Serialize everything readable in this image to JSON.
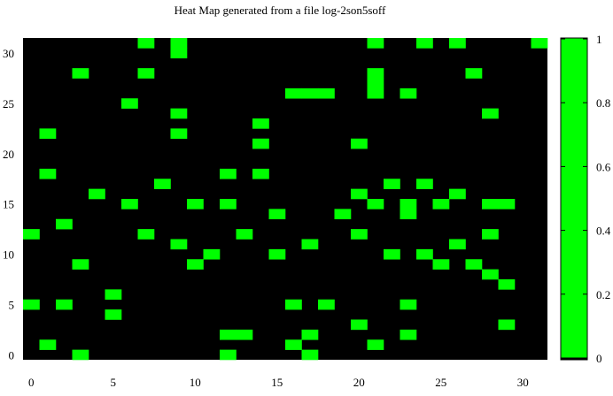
{
  "chart_data": {
    "type": "heatmap",
    "title": "Heat Map generated from a file log-2son5soff",
    "xlabel": "",
    "ylabel": "",
    "grid": false,
    "x_range": [
      0,
      31
    ],
    "y_range": [
      0,
      31
    ],
    "x_ticks": [
      "0",
      "5",
      "10",
      "15",
      "20",
      "25",
      "30"
    ],
    "y_ticks": [
      "0",
      "5",
      "10",
      "15",
      "20",
      "25",
      "30"
    ],
    "colorbar": {
      "range": [
        0,
        1
      ],
      "ticks": [
        "0",
        "0.2",
        "0.4",
        "0.6",
        "0.8",
        "1"
      ],
      "low_color": "#000000",
      "high_color": "#00ff00"
    },
    "background_value": 0,
    "cell_value": 1,
    "active_cells": [
      [
        7,
        31
      ],
      [
        9,
        31
      ],
      [
        21,
        31
      ],
      [
        24,
        31
      ],
      [
        26,
        31
      ],
      [
        31,
        31
      ],
      [
        9,
        30
      ],
      [
        3,
        28
      ],
      [
        7,
        28
      ],
      [
        21,
        28
      ],
      [
        27,
        28
      ],
      [
        21,
        27
      ],
      [
        16,
        26
      ],
      [
        17,
        26
      ],
      [
        18,
        26
      ],
      [
        21,
        26
      ],
      [
        23,
        26
      ],
      [
        6,
        25
      ],
      [
        9,
        24
      ],
      [
        28,
        24
      ],
      [
        14,
        23
      ],
      [
        1,
        22
      ],
      [
        9,
        22
      ],
      [
        14,
        21
      ],
      [
        20,
        21
      ],
      [
        1,
        18
      ],
      [
        12,
        18
      ],
      [
        14,
        18
      ],
      [
        8,
        17
      ],
      [
        22,
        17
      ],
      [
        24,
        17
      ],
      [
        4,
        16
      ],
      [
        20,
        16
      ],
      [
        26,
        16
      ],
      [
        6,
        15
      ],
      [
        10,
        15
      ],
      [
        12,
        15
      ],
      [
        21,
        15
      ],
      [
        23,
        15
      ],
      [
        25,
        15
      ],
      [
        28,
        15
      ],
      [
        29,
        15
      ],
      [
        15,
        14
      ],
      [
        19,
        14
      ],
      [
        23,
        14
      ],
      [
        2,
        13
      ],
      [
        0,
        12
      ],
      [
        7,
        12
      ],
      [
        13,
        12
      ],
      [
        20,
        12
      ],
      [
        28,
        12
      ],
      [
        9,
        11
      ],
      [
        17,
        11
      ],
      [
        26,
        11
      ],
      [
        11,
        10
      ],
      [
        15,
        10
      ],
      [
        22,
        10
      ],
      [
        24,
        10
      ],
      [
        3,
        9
      ],
      [
        10,
        9
      ],
      [
        25,
        9
      ],
      [
        27,
        9
      ],
      [
        28,
        8
      ],
      [
        29,
        7
      ],
      [
        5,
        6
      ],
      [
        0,
        5
      ],
      [
        2,
        5
      ],
      [
        16,
        5
      ],
      [
        18,
        5
      ],
      [
        23,
        5
      ],
      [
        5,
        4
      ],
      [
        20,
        3
      ],
      [
        29,
        3
      ],
      [
        12,
        2
      ],
      [
        13,
        2
      ],
      [
        17,
        2
      ],
      [
        23,
        2
      ],
      [
        1,
        1
      ],
      [
        16,
        1
      ],
      [
        21,
        1
      ],
      [
        3,
        0
      ],
      [
        12,
        0
      ],
      [
        17,
        0
      ]
    ]
  }
}
